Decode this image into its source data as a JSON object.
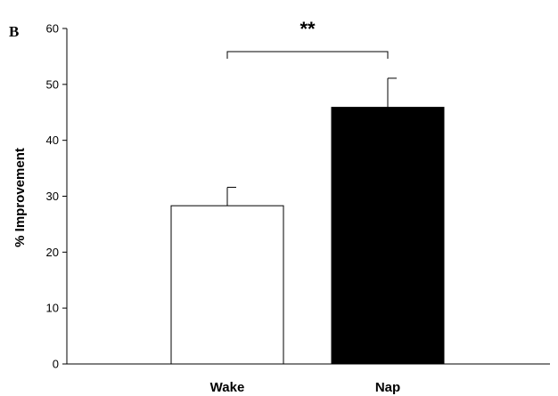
{
  "panel_label": "B",
  "chart_data": {
    "type": "bar",
    "categories": [
      "Wake",
      "Nap"
    ],
    "values": [
      28.3,
      45.9
    ],
    "errors": [
      3.3,
      5.2
    ],
    "bar_colors": [
      "#ffffff",
      "#000000"
    ],
    "bar_edge_color": "#000000",
    "ylabel": "% Improvement",
    "xlabel": "",
    "ylim": [
      0,
      60
    ],
    "yticks": [
      0,
      10,
      20,
      30,
      40,
      50,
      60
    ],
    "grid": false,
    "legend": "none",
    "significance": {
      "between": [
        "Wake",
        "Nap"
      ],
      "label": "**"
    }
  }
}
